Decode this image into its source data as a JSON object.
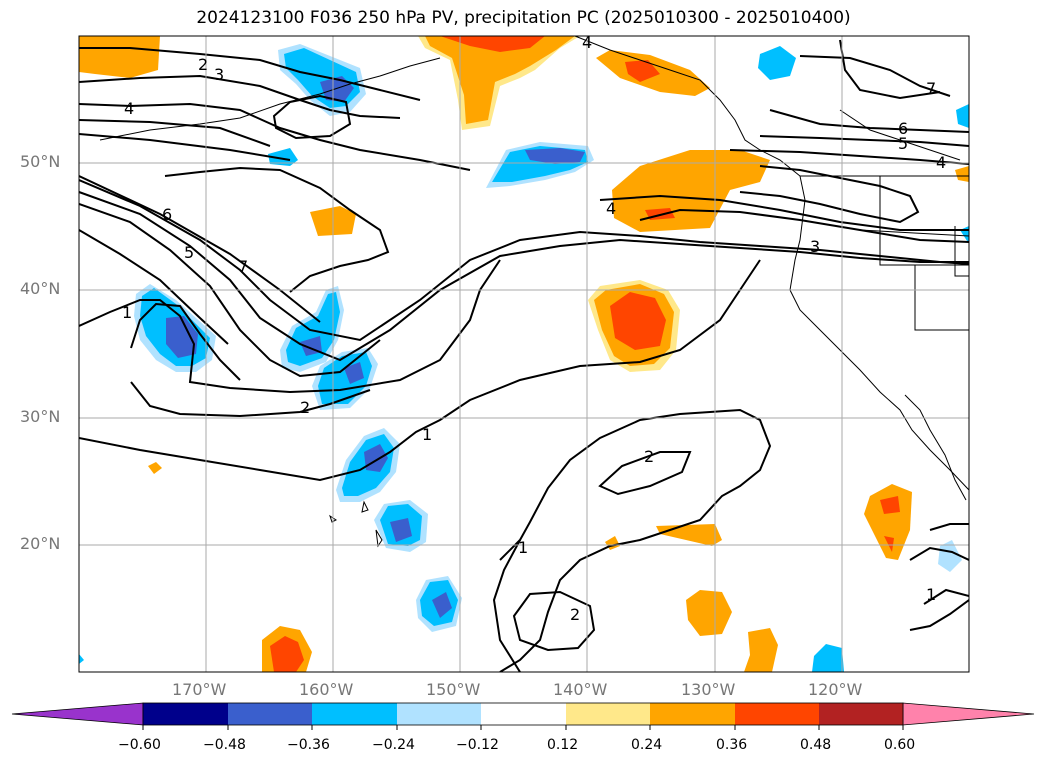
{
  "title": "2024123100 F036 250 hPa PV, precipitation PC (2025010300 - 2025010400)",
  "map": {
    "lon_range": [
      -180,
      -110
    ],
    "lat_range": [
      10,
      60
    ],
    "lat_labels": [
      "50°N",
      "40°N",
      "30°N",
      "20°N"
    ],
    "lon_labels": [
      "170°W",
      "160°W",
      "150°W",
      "140°W",
      "130°W",
      "120°W"
    ],
    "gridlines": true
  },
  "contour_labels": [
    {
      "text": "2"
    },
    {
      "text": "3"
    },
    {
      "text": "4"
    },
    {
      "text": "6"
    },
    {
      "text": "5"
    },
    {
      "text": "7"
    },
    {
      "text": "1"
    },
    {
      "text": "2"
    },
    {
      "text": "1"
    },
    {
      "text": "2"
    },
    {
      "text": "1"
    },
    {
      "text": "2"
    },
    {
      "text": "4"
    },
    {
      "text": "4"
    },
    {
      "text": "3"
    },
    {
      "text": "7"
    },
    {
      "text": "6"
    },
    {
      "text": "5"
    },
    {
      "text": "4"
    },
    {
      "text": "1"
    }
  ],
  "colorbar": {
    "ticks": [
      "−0.60",
      "−0.48",
      "−0.36",
      "−0.24",
      "−0.12",
      "0.12",
      "0.24",
      "0.36",
      "0.48",
      "0.60"
    ],
    "colors": [
      "#9933cc",
      "#00008b",
      "#3a5fcd",
      "#00bfff",
      "#b0e2ff",
      "#ffffff",
      "#ffe88a",
      "#ffa500",
      "#ff4500",
      "#b22222",
      "#ff82ab"
    ]
  }
}
